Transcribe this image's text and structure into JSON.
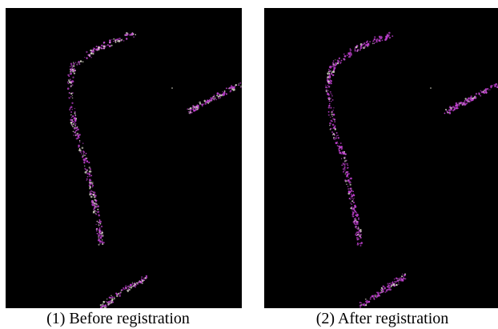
{
  "panels": [
    {
      "caption": "(1) Before registration"
    },
    {
      "caption": "(2) After registration"
    }
  ],
  "colors": {
    "background": "#000000",
    "points_primary": "#c040d0",
    "points_secondary": "#d8d8c8"
  }
}
